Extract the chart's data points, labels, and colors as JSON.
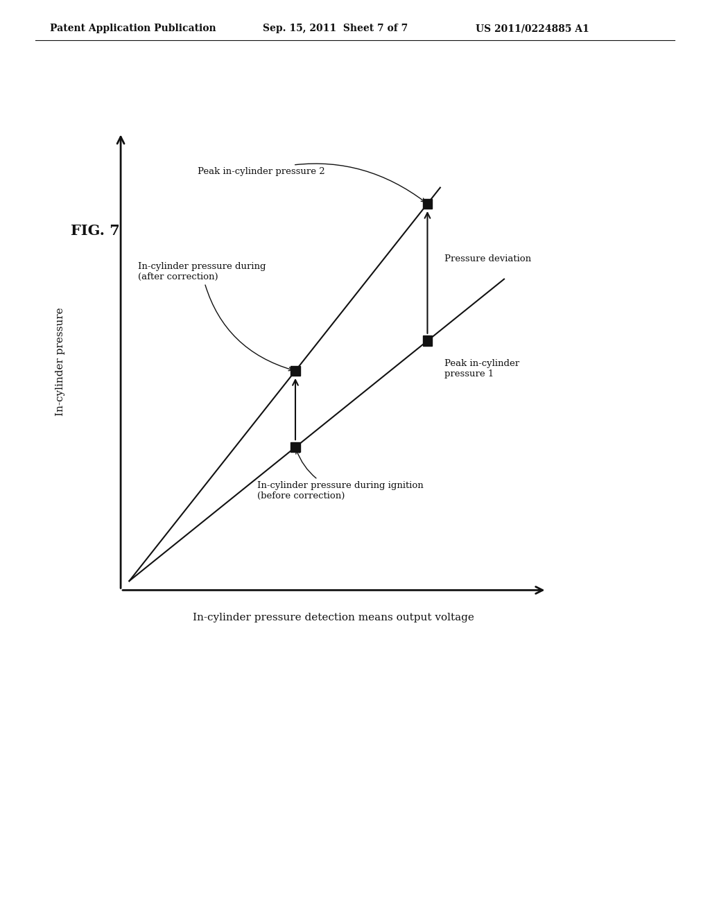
{
  "fig_label": "FIG. 7",
  "header_left": "Patent Application Publication",
  "header_center": "Sep. 15, 2011  Sheet 7 of 7",
  "header_right": "US 2011/0224885 A1",
  "xlabel": "In-cylinder pressure detection means output voltage",
  "ylabel": "In-cylinder pressure",
  "background_color": "#ffffff",
  "text_color": "#111111",
  "line_color": "#111111",
  "point_color": "#111111",
  "header_fontsize": 10,
  "fig_label_fontsize": 15,
  "axis_label_fontsize": 11,
  "annotation_fontsize": 9.5
}
